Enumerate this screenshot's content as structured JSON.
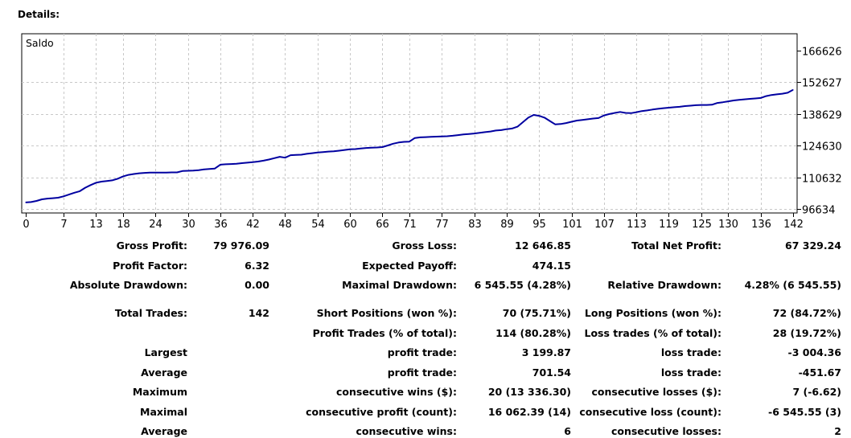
{
  "header": {
    "title": "Details:"
  },
  "chart_data": {
    "type": "line",
    "title": "Saldo",
    "x_tick_labels": [
      "0",
      "7",
      "13",
      "18",
      "24",
      "30",
      "36",
      "42",
      "48",
      "54",
      "60",
      "66",
      "71",
      "77",
      "83",
      "89",
      "95",
      "101",
      "107",
      "113",
      "119",
      "125",
      "130",
      "136",
      "142"
    ],
    "y_tick_labels": [
      "166626",
      "152627",
      "138629",
      "124630",
      "110632",
      "96634"
    ],
    "xlim": [
      0,
      142
    ],
    "ylim": [
      96634,
      166626
    ],
    "grid": true,
    "series": [
      {
        "color": "#0000a0",
        "x": [
          0,
          1,
          2,
          3,
          4,
          5,
          6,
          7,
          8,
          9,
          10,
          11,
          12,
          13,
          14,
          15,
          16,
          17,
          18,
          19,
          20,
          21,
          22,
          23,
          24,
          25,
          26,
          27,
          28,
          29,
          30,
          31,
          32,
          33,
          34,
          35,
          36,
          37,
          38,
          39,
          40,
          41,
          42,
          43,
          44,
          45,
          46,
          47,
          48,
          49,
          50,
          51,
          52,
          53,
          54,
          55,
          56,
          57,
          58,
          59,
          60,
          61,
          62,
          63,
          64,
          65,
          66,
          67,
          68,
          69,
          70,
          71,
          72,
          73,
          74,
          75,
          76,
          77,
          78,
          79,
          80,
          81,
          82,
          83,
          84,
          85,
          86,
          87,
          88,
          89,
          90,
          91,
          92,
          93,
          94,
          95,
          96,
          97,
          98,
          99,
          100,
          101,
          102,
          103,
          104,
          105,
          106,
          107,
          108,
          109,
          110,
          111,
          112,
          113,
          114,
          115,
          116,
          117,
          118,
          119,
          120,
          121,
          122,
          123,
          124,
          125,
          126,
          127,
          128,
          129,
          130,
          131,
          132,
          133,
          134,
          135,
          136,
          137,
          138,
          139,
          140,
          141,
          142
        ],
        "y": [
          99500,
          99700,
          100200,
          100900,
          101200,
          101400,
          101600,
          102200,
          103000,
          103800,
          104500,
          106000,
          107200,
          108200,
          108700,
          109000,
          109300,
          110000,
          111000,
          111700,
          112100,
          112400,
          112600,
          112700,
          112700,
          112700,
          112700,
          112800,
          112800,
          113400,
          113500,
          113600,
          113800,
          114100,
          114300,
          114500,
          116200,
          116400,
          116500,
          116600,
          116900,
          117100,
          117300,
          117600,
          118000,
          118500,
          119100,
          119700,
          119300,
          120400,
          120500,
          120600,
          121000,
          121300,
          121600,
          121800,
          122000,
          122100,
          122400,
          122700,
          123000,
          123100,
          123400,
          123600,
          123700,
          123800,
          124000,
          124700,
          125500,
          126000,
          126300,
          126400,
          128000,
          128300,
          128400,
          128500,
          128600,
          128700,
          128800,
          129000,
          129300,
          129600,
          129800,
          130000,
          130300,
          130600,
          130900,
          131300,
          131500,
          131900,
          132200,
          133000,
          135000,
          137000,
          138200,
          137800,
          137000,
          135500,
          134000,
          134200,
          134600,
          135200,
          135700,
          136000,
          136300,
          136600,
          136800,
          138000,
          138600,
          139100,
          139500,
          139100,
          139000,
          139400,
          139900,
          140200,
          140600,
          140900,
          141200,
          141400,
          141600,
          141800,
          142100,
          142300,
          142500,
          142600,
          142600,
          142700,
          143500,
          143800,
          144200,
          144600,
          144900,
          145100,
          145300,
          145500,
          145700,
          146500,
          147000,
          147300,
          147600,
          148000,
          149300
        ]
      }
    ]
  },
  "stats": {
    "gross_profit_label": "Gross Profit:",
    "gross_profit": "79 976.09",
    "gross_loss_label": "Gross Loss:",
    "gross_loss": "12 646.85",
    "total_net_profit_label": "Total Net Profit:",
    "total_net_profit": "67 329.24",
    "profit_factor_label": "Profit Factor:",
    "profit_factor": "6.32",
    "expected_payoff_label": "Expected Payoff:",
    "expected_payoff": "474.15",
    "absolute_drawdown_label": "Absolute Drawdown:",
    "absolute_drawdown": "0.00",
    "maximal_drawdown_label": "Maximal Drawdown:",
    "maximal_drawdown": "6 545.55 (4.28%)",
    "relative_drawdown_label": "Relative Drawdown:",
    "relative_drawdown": "4.28% (6 545.55)",
    "total_trades_label": "Total Trades:",
    "total_trades": "142",
    "short_positions_label": "Short Positions (won %):",
    "short_positions": "70 (75.71%)",
    "long_positions_label": "Long Positions (won %):",
    "long_positions": "72 (84.72%)",
    "profit_trades_label": "Profit Trades (% of total):",
    "profit_trades": "114 (80.28%)",
    "loss_trades_label": "Loss trades (% of total):",
    "loss_trades": "28 (19.72%)",
    "largest_label": "Largest",
    "largest_profit_label": "profit trade:",
    "largest_profit": "3 199.87",
    "largest_loss_label": "loss trade:",
    "largest_loss": "-3 004.36",
    "average_label": "Average",
    "average_profit_label": "profit trade:",
    "average_profit": "701.54",
    "average_loss_label": "loss trade:",
    "average_loss": "-451.67",
    "maximum_label": "Maximum",
    "max_cons_wins_label": "consecutive wins ($):",
    "max_cons_wins": "20 (13 336.30)",
    "max_cons_losses_label": "consecutive losses ($):",
    "max_cons_losses": "7 (-6.62)",
    "maximal_label": "Maximal",
    "maximal_cons_profit_label": "consecutive profit (count):",
    "maximal_cons_profit": "16 062.39 (14)",
    "maximal_cons_loss_label": "consecutive loss (count):",
    "maximal_cons_loss": "-6 545.55 (3)",
    "average2_label": "Average",
    "avg_cons_wins_label": "consecutive wins:",
    "avg_cons_wins": "6",
    "avg_cons_losses_label": "consecutive losses:",
    "avg_cons_losses": "2"
  }
}
